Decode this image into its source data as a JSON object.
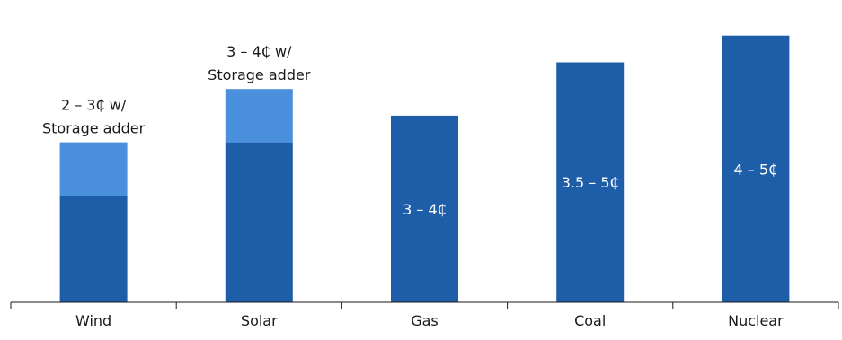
{
  "chart_data": {
    "type": "bar",
    "stacked": true,
    "categories": [
      "Wind",
      "Solar",
      "Gas",
      "Coal",
      "Nuclear"
    ],
    "series": [
      {
        "values": [
          2,
          3,
          3.5,
          4.5,
          5
        ],
        "color": "#1e5ea8"
      },
      {
        "values": [
          1,
          1,
          0,
          0,
          0
        ],
        "color": "#4a90dd"
      }
    ],
    "ylim": [
      0,
      5.5
    ],
    "grid": false,
    "legend": "none",
    "bar_labels": [
      {
        "category": "Wind",
        "text": [
          "2 – 3₵ w/",
          "Storage adder"
        ],
        "position": "above"
      },
      {
        "category": "Solar",
        "text": [
          "3 – 4₵ w/",
          "Storage adder"
        ],
        "position": "above"
      },
      {
        "category": "Gas",
        "text": [
          "3 – 4₵"
        ],
        "position": "inside"
      },
      {
        "category": "Coal",
        "text": [
          "3.5 – 5₵"
        ],
        "position": "inside"
      },
      {
        "category": "Nuclear",
        "text": [
          "4 – 5₵"
        ],
        "position": "inside"
      }
    ]
  }
}
